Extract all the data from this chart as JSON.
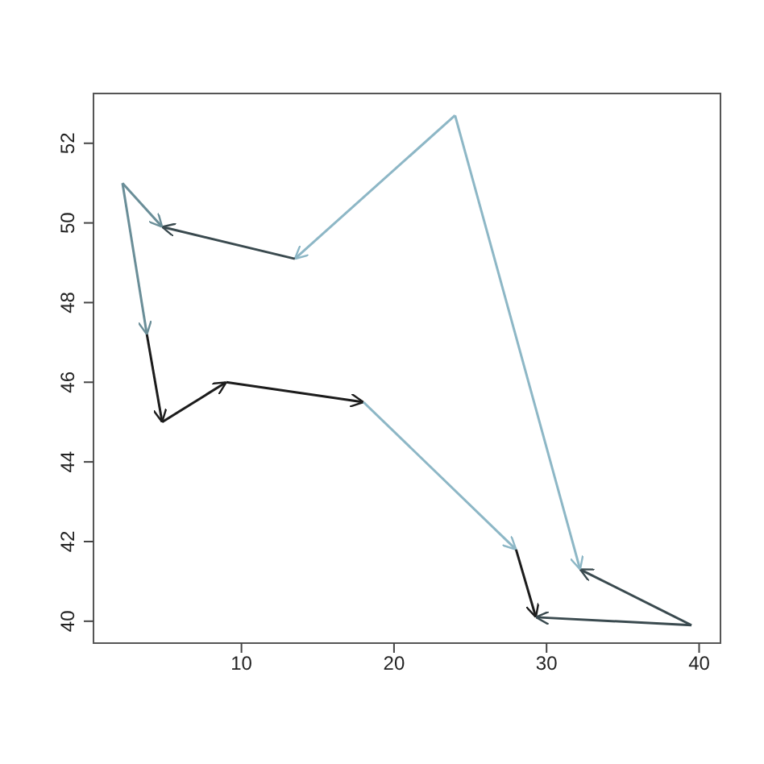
{
  "chart_data": {
    "type": "line",
    "xlim": [
      0.3,
      41.4
    ],
    "ylim": [
      39.45,
      53.25
    ],
    "xticks": [
      10,
      20,
      30,
      40
    ],
    "yticks": [
      40,
      42,
      44,
      46,
      48,
      50,
      52
    ],
    "grid": false,
    "series": [
      {
        "color": "#6a8e98",
        "x": [
          2.2,
          3.8
        ],
        "values": [
          51,
          47.2
        ]
      },
      {
        "color": "#1c1c1c",
        "x": [
          3.8,
          4.8
        ],
        "values": [
          47.2,
          45
        ]
      },
      {
        "color": "#1c1c1c",
        "x": [
          4.8,
          9
        ],
        "values": [
          45,
          46
        ]
      },
      {
        "color": "#1c1c1c",
        "x": [
          9,
          18
        ],
        "values": [
          46,
          45.5
        ]
      },
      {
        "color": "#8db7c6",
        "x": [
          18,
          28
        ],
        "values": [
          45.5,
          41.8
        ]
      },
      {
        "color": "#1c1c1c",
        "x": [
          28,
          29.3
        ],
        "values": [
          41.8,
          40.1
        ]
      },
      {
        "color": "#3a4a4f",
        "x": [
          39.5,
          29.3
        ],
        "values": [
          39.9,
          40.1
        ]
      },
      {
        "color": "#3a4a4f",
        "x": [
          39.5,
          32.2
        ],
        "values": [
          39.9,
          41.3
        ]
      },
      {
        "color": "#8db7c6",
        "x": [
          24,
          32.2
        ],
        "values": [
          52.7,
          41.3
        ]
      },
      {
        "color": "#8db7c6",
        "x": [
          24,
          13.5
        ],
        "values": [
          52.7,
          49.1
        ]
      },
      {
        "color": "#3a4a4f",
        "x": [
          13.5,
          4.8
        ],
        "values": [
          49.1,
          49.9
        ]
      },
      {
        "color": "#6a8e98",
        "x": [
          2.2,
          4.8
        ],
        "values": [
          51,
          49.9
        ]
      }
    ]
  }
}
